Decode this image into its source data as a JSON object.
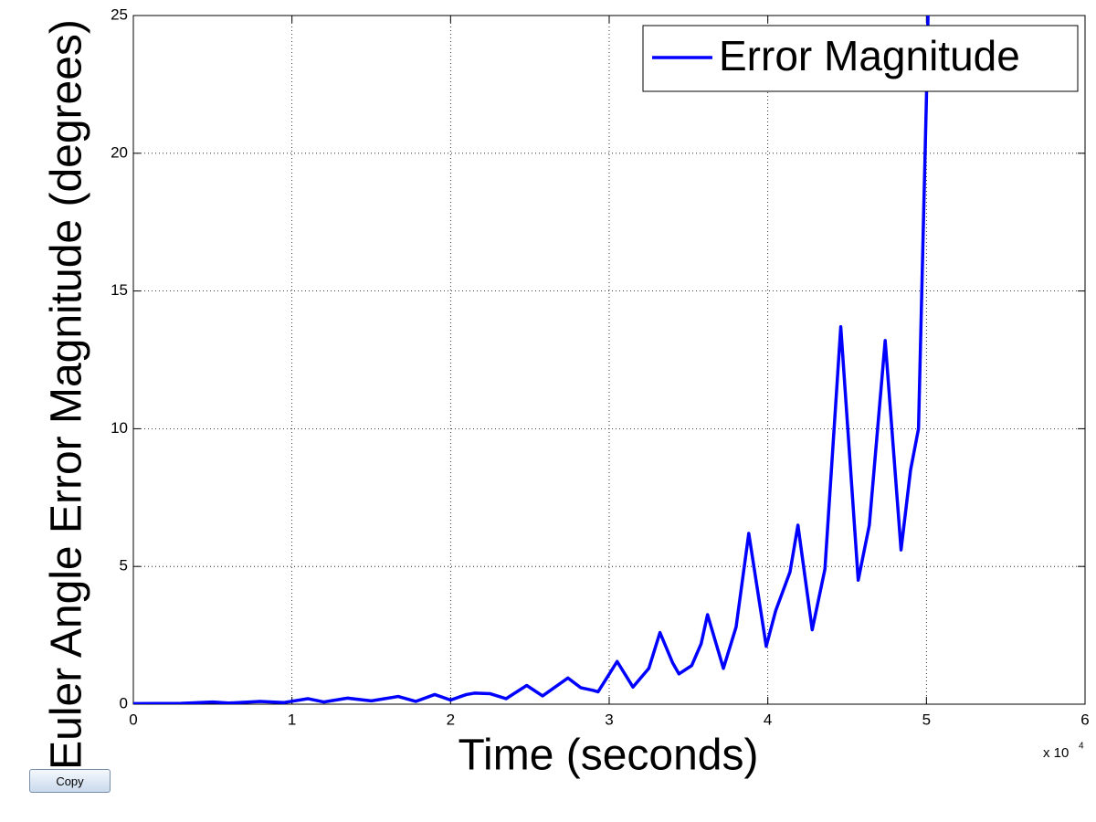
{
  "chart_data": {
    "type": "line",
    "xlabel": "Time (seconds)",
    "ylabel": "Euler Angle Error Magnitude (degrees)",
    "x_multiplier": "x 10",
    "x_multiplier_exponent": "4",
    "xlim": [
      0,
      6
    ],
    "xticks": [
      0,
      1,
      2,
      3,
      4,
      5,
      6
    ],
    "ylim": [
      0,
      25
    ],
    "yticks": [
      0,
      5,
      10,
      15,
      20,
      25
    ],
    "grid": true,
    "legend": "upper right",
    "series": [
      {
        "name": "Error Magnitude",
        "color": "#0000ff",
        "x": [
          0,
          0.3,
          0.5,
          0.6,
          0.8,
          0.95,
          1.1,
          1.2,
          1.35,
          1.5,
          1.67,
          1.78,
          1.9,
          2.0,
          2.1,
          2.15,
          2.25,
          2.35,
          2.48,
          2.58,
          2.74,
          2.82,
          2.9,
          2.93,
          3.05,
          3.15,
          3.25,
          3.32,
          3.4,
          3.44,
          3.52,
          3.58,
          3.62,
          3.72,
          3.8,
          3.88,
          3.99,
          4.05,
          4.14,
          4.19,
          4.28,
          4.36,
          4.46,
          4.57,
          4.64,
          4.74,
          4.84,
          4.9,
          4.95,
          5.0,
          5.01
        ],
        "values": [
          0.02,
          0.03,
          0.08,
          0.04,
          0.1,
          0.06,
          0.2,
          0.08,
          0.22,
          0.12,
          0.28,
          0.1,
          0.35,
          0.15,
          0.35,
          0.4,
          0.38,
          0.2,
          0.68,
          0.3,
          0.95,
          0.6,
          0.5,
          0.45,
          1.55,
          0.62,
          1.3,
          2.6,
          1.5,
          1.1,
          1.4,
          2.2,
          3.25,
          1.3,
          2.8,
          6.2,
          2.1,
          3.4,
          4.8,
          6.5,
          2.7,
          4.9,
          13.7,
          4.5,
          6.5,
          13.2,
          5.6,
          8.5,
          10,
          22,
          25
        ]
      }
    ]
  },
  "copy_button": "Copy"
}
